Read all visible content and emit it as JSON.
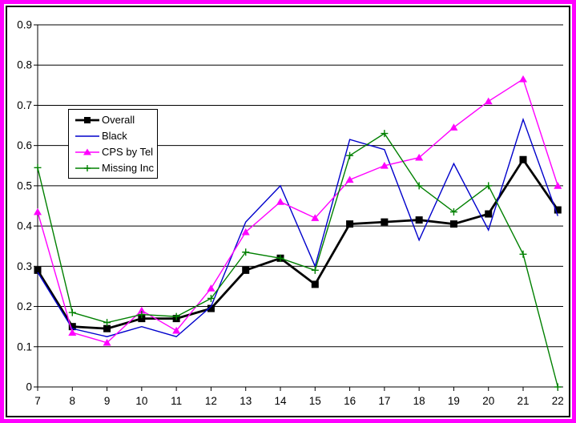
{
  "window": {
    "outer_border_color": "#FF00FF",
    "inner_frame_color": "#000000",
    "background": "#FFFFFF"
  },
  "chart_data": {
    "type": "line",
    "title": "",
    "xlabel": "",
    "ylabel": "",
    "x": [
      7,
      8,
      9,
      10,
      11,
      12,
      13,
      14,
      15,
      16,
      17,
      18,
      19,
      20,
      21,
      22
    ],
    "x_tick_labels": [
      "7",
      "8",
      "9",
      "10",
      "11",
      "12",
      "13",
      "14",
      "15",
      "16",
      "17",
      "18",
      "19",
      "20",
      "21",
      "22"
    ],
    "y_tick_labels": [
      "0",
      "0.1",
      "0.2",
      "0.3",
      "0.4",
      "0.5",
      "0.6",
      "0.7",
      "0.8",
      "0.9"
    ],
    "ylim": [
      0,
      0.9
    ],
    "grid": "horizontal",
    "legend_position": "upper-left-inside",
    "series": [
      {
        "name": "Overall",
        "color": "#000000",
        "marker": "square",
        "line_width": 2.8,
        "values": [
          0.29,
          0.15,
          0.145,
          0.17,
          0.17,
          0.195,
          0.29,
          0.32,
          0.255,
          0.405,
          0.41,
          0.415,
          0.405,
          0.43,
          0.565,
          0.44
        ]
      },
      {
        "name": "Black",
        "color": "#0000CC",
        "marker": "none",
        "line_width": 1.4,
        "values": [
          0.285,
          0.145,
          0.125,
          0.15,
          0.125,
          0.2,
          0.41,
          0.5,
          0.3,
          0.615,
          0.59,
          0.365,
          0.555,
          0.39,
          0.665,
          0.425
        ]
      },
      {
        "name": "CPS by Tel",
        "color": "#FF00FF",
        "marker": "triangle",
        "line_width": 1.4,
        "values": [
          0.435,
          0.135,
          0.11,
          0.19,
          0.14,
          0.245,
          0.385,
          0.46,
          0.42,
          0.515,
          0.55,
          0.57,
          0.645,
          0.71,
          0.765,
          0.5
        ]
      },
      {
        "name": "Missing Inc",
        "color": "#008000",
        "marker": "plus",
        "line_width": 1.4,
        "values": [
          0.545,
          0.185,
          0.16,
          0.18,
          0.175,
          0.22,
          0.335,
          0.32,
          0.29,
          0.575,
          0.63,
          0.5,
          0.435,
          0.5,
          0.33,
          0
        ]
      }
    ]
  }
}
